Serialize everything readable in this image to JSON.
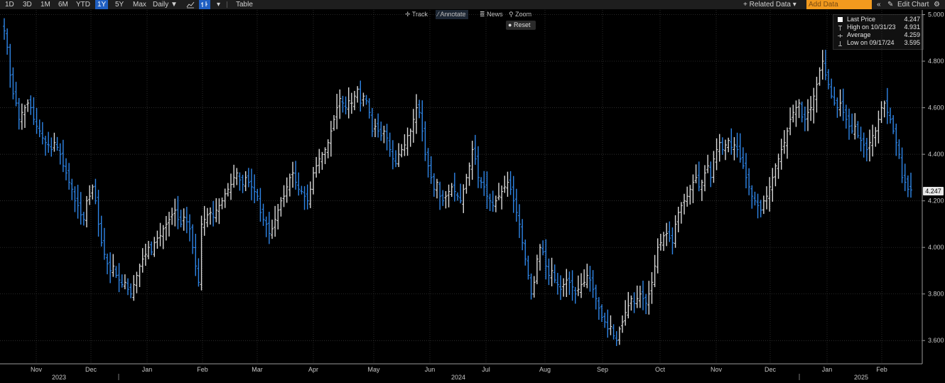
{
  "toolbar_top": {
    "ranges": [
      "1D",
      "3D",
      "1M",
      "6M",
      "YTD",
      "1Y",
      "5Y",
      "Max"
    ],
    "active_range": "1Y",
    "frequency": "Daily ▼",
    "table_label": "Table",
    "related_data": "+ Related Data ▾",
    "add_data_placeholder": "Add Data",
    "edit_chart": "Edit Chart",
    "collapse_glyph": "«",
    "pencil_glyph": "✎",
    "gear_glyph": "⚙"
  },
  "chart_tools": {
    "track": "Track",
    "annotate": "Annotate",
    "news": "News",
    "zoom": "Zoom",
    "reset": "Reset"
  },
  "legend": [
    {
      "label": "Last Price",
      "value": "4.247",
      "icon": "white-square"
    },
    {
      "label": "High on 10/31/23",
      "value": "4.931",
      "icon": "high-marker"
    },
    {
      "label": "Average",
      "value": "4.259",
      "icon": "average-marker"
    },
    {
      "label": "Low on 09/17/24",
      "value": "3.595",
      "icon": "low-marker"
    }
  ],
  "last_price_badge": "4.247",
  "colors": {
    "up": "#d9d9d9",
    "down": "#2f86e8",
    "grid": "#3c3c3c",
    "background": "#000000"
  },
  "chart_data": {
    "type": "ohlc-bar",
    "frequency": "daily",
    "ylim": [
      3.5,
      5.02
    ],
    "y_ticks": [
      "5.000",
      "4.800",
      "4.600",
      "4.400",
      "4.200",
      "4.000",
      "3.800",
      "3.600"
    ],
    "y_tick_values": [
      5.0,
      4.8,
      4.6,
      4.4,
      4.2,
      4.0,
      3.8,
      3.6
    ],
    "x_tick_labels": [
      "Nov",
      "Dec",
      "Jan",
      "Feb",
      "Mar",
      "Apr",
      "May",
      "Jun",
      "Jul",
      "Aug",
      "Sep",
      "Oct",
      "Nov",
      "Dec",
      "Jan",
      "Feb"
    ],
    "year_labels": [
      "2023",
      "2024",
      "2025"
    ],
    "grid": true,
    "series": [
      {
        "close_values": [
          4.93,
          4.86,
          4.74,
          4.66,
          4.62,
          4.55,
          4.58,
          4.6,
          4.62,
          4.6,
          4.55,
          4.52,
          4.5,
          4.47,
          4.45,
          4.44,
          4.42,
          4.45,
          4.43,
          4.4,
          4.35,
          4.32,
          4.28,
          4.25,
          4.2,
          4.18,
          4.14,
          4.12,
          4.2,
          4.22,
          4.26,
          4.2,
          4.1,
          4.02,
          3.97,
          3.93,
          3.9,
          3.92,
          3.88,
          3.86,
          3.84,
          3.85,
          3.82,
          3.8,
          3.84,
          3.88,
          3.92,
          3.95,
          3.97,
          4.0,
          3.98,
          4.02,
          4.04,
          4.05,
          4.08,
          4.1,
          4.12,
          4.14,
          4.16,
          4.12,
          4.1,
          4.13,
          4.11,
          4.08,
          4.0,
          3.92,
          3.85,
          4.1,
          4.12,
          4.14,
          4.15,
          4.13,
          4.16,
          4.18,
          4.2,
          4.23,
          4.25,
          4.27,
          4.3,
          4.32,
          4.29,
          4.27,
          4.3,
          4.28,
          4.26,
          4.24,
          4.22,
          4.15,
          4.12,
          4.1,
          4.06,
          4.08,
          4.12,
          4.16,
          4.2,
          4.22,
          4.26,
          4.3,
          4.32,
          4.28,
          4.25,
          4.24,
          4.22,
          4.2,
          4.25,
          4.32,
          4.35,
          4.38,
          4.4,
          4.42,
          4.45,
          4.5,
          4.55,
          4.6,
          4.64,
          4.62,
          4.6,
          4.63,
          4.62,
          4.65,
          4.68,
          4.62,
          4.65,
          4.63,
          4.58,
          4.5,
          4.52,
          4.5,
          4.48,
          4.5,
          4.47,
          4.42,
          4.38,
          4.36,
          4.4,
          4.42,
          4.44,
          4.48,
          4.5,
          4.55,
          4.6,
          4.58,
          4.5,
          4.4,
          4.35,
          4.3,
          4.25,
          4.28,
          4.22,
          4.2,
          4.22,
          4.24,
          4.26,
          4.24,
          4.22,
          4.2,
          4.25,
          4.3,
          4.35,
          4.42,
          4.38,
          4.3,
          4.28,
          4.26,
          4.22,
          4.2,
          4.18,
          4.2,
          4.22,
          4.24,
          4.26,
          4.28,
          4.25,
          4.2,
          4.15,
          4.1,
          4.02,
          3.95,
          3.88,
          3.8,
          3.85,
          3.95,
          4.0,
          3.98,
          3.92,
          3.88,
          3.9,
          3.86,
          3.84,
          3.82,
          3.84,
          3.86,
          3.85,
          3.83,
          3.8,
          3.82,
          3.84,
          3.85,
          3.88,
          3.86,
          3.82,
          3.78,
          3.74,
          3.7,
          3.68,
          3.65,
          3.66,
          3.62,
          3.6,
          3.65,
          3.68,
          3.72,
          3.75,
          3.78,
          3.76,
          3.78,
          3.8,
          3.78,
          3.76,
          3.8,
          3.85,
          3.92,
          4.0,
          4.02,
          4.05,
          4.06,
          4.04,
          4.02,
          4.1,
          4.15,
          4.18,
          4.2,
          4.22,
          4.25,
          4.28,
          4.3,
          4.26,
          4.28,
          4.32,
          4.35,
          4.3,
          4.38,
          4.42,
          4.45,
          4.42,
          4.44,
          4.46,
          4.43,
          4.44,
          4.42,
          4.38,
          4.35,
          4.3,
          4.26,
          4.22,
          4.2,
          4.18,
          4.16,
          4.2,
          4.22,
          4.26,
          4.3,
          4.35,
          4.38,
          4.42,
          4.45,
          4.5,
          4.55,
          4.58,
          4.6,
          4.62,
          4.56,
          4.55,
          4.58,
          4.6,
          4.65,
          4.7,
          4.76,
          4.8,
          4.74,
          4.7,
          4.65,
          4.62,
          4.6,
          4.62,
          4.58,
          4.55,
          4.52,
          4.5,
          4.52,
          4.48,
          4.46,
          4.44,
          4.42,
          4.45,
          4.48,
          4.5,
          4.55,
          4.6,
          4.62,
          4.58,
          4.55,
          4.5,
          4.45,
          4.4,
          4.3,
          4.28,
          4.25,
          4.247
        ]
      }
    ]
  }
}
